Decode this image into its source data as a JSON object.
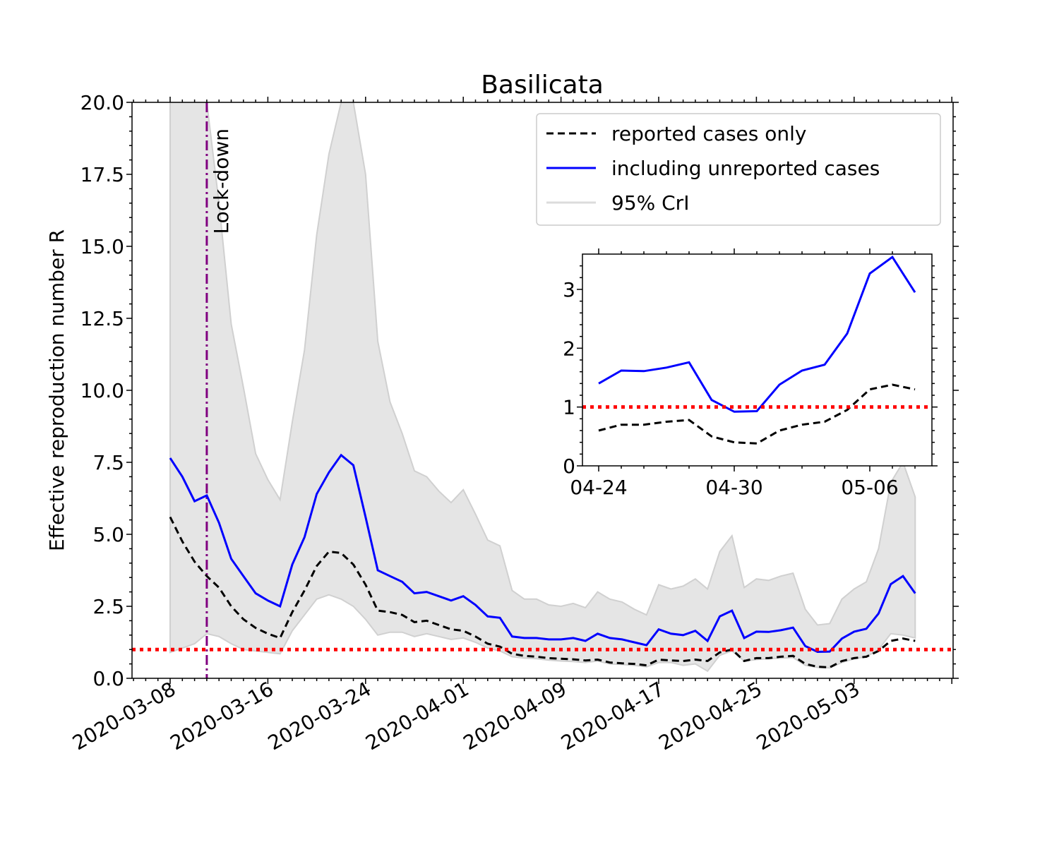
{
  "chart_data": {
    "type": "line",
    "title": "Basilicata",
    "xlabel": "",
    "ylabel": "Effective reproduction number R",
    "ylim": [
      0,
      20
    ],
    "yticks": [
      "0.0",
      "2.5",
      "5.0",
      "7.5",
      "10.0",
      "12.5",
      "15.0",
      "17.5",
      "20.0"
    ],
    "xticks": [
      "2020-03-08",
      "2020-03-16",
      "2020-03-24",
      "2020-04-01",
      "2020-04-09",
      "2020-04-17",
      "2020-04-25",
      "2020-05-03"
    ],
    "start_date": "2020-03-08",
    "threshold": 1.0,
    "lockdown": {
      "day": 3,
      "label": "Lock-down",
      "color": "#800080"
    },
    "legend": {
      "reported": "reported cases only",
      "including": "including unreported cases",
      "crl": "95% CrI"
    },
    "colors": {
      "including": "#0000ff",
      "reported": "#000000",
      "band": "#e5e5e5",
      "band_edge": "#d0d0d0",
      "threshold": "#ff0000"
    },
    "series": [
      {
        "name": "including unreported cases",
        "values": [
          7.65,
          7.0,
          6.15,
          6.35,
          5.4,
          4.15,
          3.55,
          2.95,
          2.7,
          2.5,
          3.95,
          4.9,
          6.4,
          7.15,
          7.75,
          7.4,
          5.6,
          3.75,
          3.55,
          3.35,
          2.95,
          3.0,
          2.85,
          2.7,
          2.85,
          2.55,
          2.15,
          2.1,
          1.45,
          1.4,
          1.4,
          1.35,
          1.35,
          1.4,
          1.3,
          1.55,
          1.4,
          1.35,
          1.25,
          1.15,
          1.7,
          1.55,
          1.5,
          1.65,
          1.3,
          2.15,
          2.35,
          1.4,
          1.62,
          1.61,
          1.67,
          1.76,
          1.12,
          0.92,
          0.93,
          1.38,
          1.62,
          1.72,
          2.25,
          3.27,
          3.55,
          2.95
        ]
      },
      {
        "name": "reported cases only",
        "values": [
          5.6,
          4.75,
          4.05,
          3.55,
          3.15,
          2.5,
          2.05,
          1.75,
          1.55,
          1.4,
          2.3,
          3.05,
          3.9,
          4.4,
          4.35,
          3.95,
          3.25,
          2.35,
          2.3,
          2.2,
          1.95,
          2.0,
          1.85,
          1.7,
          1.65,
          1.45,
          1.2,
          1.1,
          0.85,
          0.78,
          0.75,
          0.7,
          0.68,
          0.66,
          0.62,
          0.65,
          0.55,
          0.52,
          0.5,
          0.45,
          0.65,
          0.62,
          0.6,
          0.65,
          0.6,
          0.9,
          1.0,
          0.6,
          0.7,
          0.7,
          0.75,
          0.78,
          0.5,
          0.4,
          0.38,
          0.6,
          0.7,
          0.75,
          0.95,
          1.3,
          1.38,
          1.3
        ]
      }
    ],
    "band": {
      "upper": [
        20.0,
        20.0,
        20.0,
        20.0,
        16.5,
        12.3,
        10.1,
        7.8,
        6.9,
        6.2,
        8.9,
        11.4,
        15.4,
        18.2,
        20.0,
        20.0,
        17.5,
        11.7,
        9.6,
        8.5,
        7.2,
        7.0,
        6.5,
        6.1,
        6.55,
        5.7,
        4.8,
        4.6,
        3.05,
        2.75,
        2.75,
        2.55,
        2.5,
        2.6,
        2.45,
        3.0,
        2.75,
        2.65,
        2.4,
        2.2,
        3.25,
        3.1,
        3.2,
        3.45,
        3.1,
        4.4,
        4.95,
        3.15,
        3.45,
        3.4,
        3.55,
        3.65,
        2.4,
        1.85,
        1.9,
        2.75,
        3.1,
        3.35,
        4.5,
        6.8,
        7.5,
        6.3
      ],
      "lower": [
        0.9,
        1.05,
        1.2,
        1.55,
        1.45,
        1.2,
        1.0,
        0.95,
        0.9,
        0.85,
        1.65,
        2.2,
        2.75,
        2.9,
        2.75,
        2.5,
        2.05,
        1.5,
        1.6,
        1.6,
        1.45,
        1.55,
        1.45,
        1.35,
        1.4,
        1.25,
        1.05,
        0.95,
        0.75,
        0.7,
        0.68,
        0.63,
        0.6,
        0.58,
        0.55,
        0.6,
        0.5,
        0.48,
        0.45,
        0.4,
        0.55,
        0.55,
        0.45,
        0.5,
        0.25,
        0.8,
        0.95,
        0.6,
        0.65,
        0.68,
        0.7,
        0.72,
        0.45,
        0.38,
        0.36,
        0.55,
        0.68,
        0.75,
        1.0,
        1.55,
        1.5,
        1.4
      ]
    },
    "inset": {
      "start_index": 47,
      "xticks": [
        "04-24",
        "04-30",
        "05-06"
      ],
      "yticks": [
        "0",
        "1",
        "2",
        "3"
      ],
      "ylim": [
        0,
        3.6
      ]
    }
  }
}
